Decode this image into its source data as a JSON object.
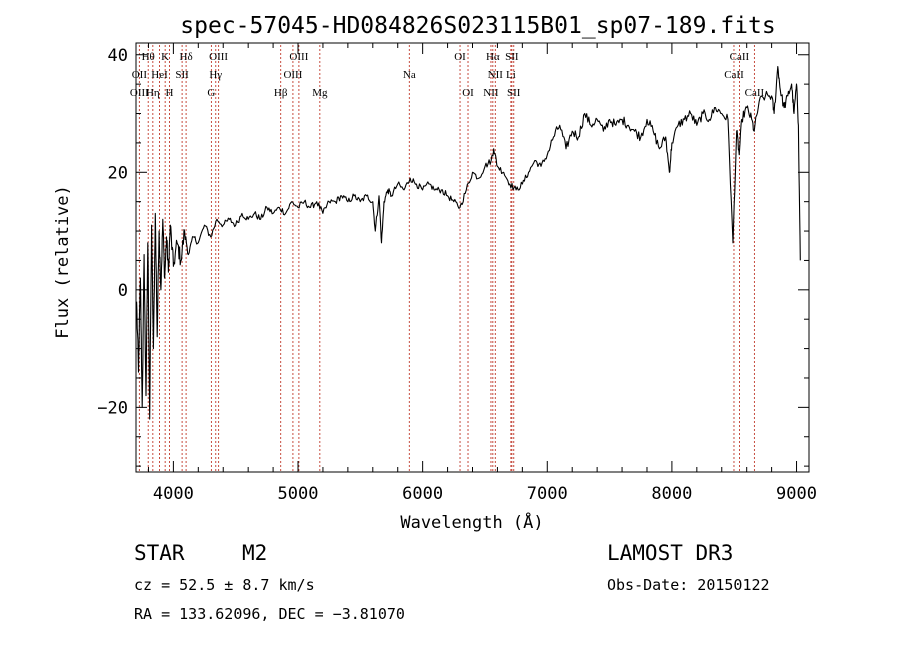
{
  "chart_data": {
    "type": "line",
    "title": "spec-57045-HD084826S023115B01_sp07-189.fits",
    "xlabel": "Wavelength (Å)",
    "ylabel": "Flux (relative)",
    "xlim": [
      3700,
      9100
    ],
    "ylim": [
      -31,
      42
    ],
    "xticks": [
      {
        "value": 4000,
        "label": "4000"
      },
      {
        "value": 5000,
        "label": "5000"
      },
      {
        "value": 6000,
        "label": "6000"
      },
      {
        "value": 7000,
        "label": "7000"
      },
      {
        "value": 8000,
        "label": "8000"
      },
      {
        "value": 9000,
        "label": "9000"
      }
    ],
    "yticks": [
      {
        "value": -20,
        "label": "−20"
      },
      {
        "value": 0,
        "label": "0"
      },
      {
        "value": 20,
        "label": "20"
      },
      {
        "value": 40,
        "label": "40"
      }
    ],
    "series": [
      {
        "name": "flux",
        "color": "#000000",
        "points": [
          [
            3705,
            -2
          ],
          [
            3720,
            -14
          ],
          [
            3735,
            2
          ],
          [
            3750,
            -20
          ],
          [
            3765,
            6
          ],
          [
            3780,
            -18
          ],
          [
            3795,
            8
          ],
          [
            3810,
            -22
          ],
          [
            3825,
            11
          ],
          [
            3840,
            -10
          ],
          [
            3855,
            13
          ],
          [
            3870,
            -8
          ],
          [
            3885,
            10
          ],
          [
            3900,
            0
          ],
          [
            3915,
            12
          ],
          [
            3930,
            2
          ],
          [
            3945,
            9
          ],
          [
            3960,
            3
          ],
          [
            3975,
            11
          ],
          [
            4000,
            4
          ],
          [
            4030,
            8
          ],
          [
            4060,
            5
          ],
          [
            4090,
            10
          ],
          [
            4120,
            6
          ],
          [
            4160,
            9
          ],
          [
            4200,
            8
          ],
          [
            4250,
            11
          ],
          [
            4300,
            9
          ],
          [
            4350,
            12
          ],
          [
            4400,
            11
          ],
          [
            4450,
            12
          ],
          [
            4500,
            11
          ],
          [
            4550,
            13
          ],
          [
            4600,
            12
          ],
          [
            4650,
            13
          ],
          [
            4700,
            12
          ],
          [
            4750,
            14
          ],
          [
            4800,
            13
          ],
          [
            4850,
            14
          ],
          [
            4900,
            13
          ],
          [
            4950,
            15
          ],
          [
            5000,
            14
          ],
          [
            5050,
            15
          ],
          [
            5100,
            14
          ],
          [
            5150,
            15
          ],
          [
            5200,
            13
          ],
          [
            5250,
            15
          ],
          [
            5300,
            15
          ],
          [
            5350,
            16
          ],
          [
            5400,
            15
          ],
          [
            5450,
            16
          ],
          [
            5500,
            15
          ],
          [
            5550,
            16
          ],
          [
            5600,
            15
          ],
          [
            5620,
            10
          ],
          [
            5650,
            16
          ],
          [
            5670,
            8
          ],
          [
            5690,
            15
          ],
          [
            5720,
            17
          ],
          [
            5750,
            16
          ],
          [
            5800,
            18
          ],
          [
            5850,
            17
          ],
          [
            5900,
            19
          ],
          [
            5950,
            18
          ],
          [
            6000,
            17
          ],
          [
            6050,
            18
          ],
          [
            6100,
            17
          ],
          [
            6150,
            17
          ],
          [
            6200,
            16
          ],
          [
            6250,
            15
          ],
          [
            6300,
            14
          ],
          [
            6350,
            17
          ],
          [
            6400,
            20
          ],
          [
            6450,
            19
          ],
          [
            6500,
            21
          ],
          [
            6550,
            22
          ],
          [
            6570,
            24
          ],
          [
            6600,
            21
          ],
          [
            6650,
            20
          ],
          [
            6700,
            18
          ],
          [
            6750,
            17
          ],
          [
            6800,
            18
          ],
          [
            6850,
            20
          ],
          [
            6900,
            22
          ],
          [
            6950,
            21
          ],
          [
            7000,
            23
          ],
          [
            7050,
            26
          ],
          [
            7100,
            28
          ],
          [
            7150,
            24
          ],
          [
            7200,
            27
          ],
          [
            7250,
            26
          ],
          [
            7300,
            30
          ],
          [
            7350,
            28
          ],
          [
            7400,
            29
          ],
          [
            7450,
            27
          ],
          [
            7500,
            29
          ],
          [
            7550,
            28
          ],
          [
            7600,
            29
          ],
          [
            7650,
            28
          ],
          [
            7700,
            27
          ],
          [
            7750,
            26
          ],
          [
            7800,
            29
          ],
          [
            7850,
            27
          ],
          [
            7900,
            24
          ],
          [
            7950,
            26
          ],
          [
            7980,
            20
          ],
          [
            8000,
            25
          ],
          [
            8050,
            28
          ],
          [
            8100,
            29
          ],
          [
            8150,
            30
          ],
          [
            8200,
            28
          ],
          [
            8250,
            30
          ],
          [
            8300,
            29
          ],
          [
            8350,
            31
          ],
          [
            8400,
            30
          ],
          [
            8450,
            29
          ],
          [
            8490,
            8
          ],
          [
            8520,
            27
          ],
          [
            8540,
            23
          ],
          [
            8560,
            29
          ],
          [
            8600,
            31
          ],
          [
            8640,
            29
          ],
          [
            8660,
            27
          ],
          [
            8700,
            32
          ],
          [
            8750,
            33
          ],
          [
            8800,
            33
          ],
          [
            8820,
            30
          ],
          [
            8850,
            38
          ],
          [
            8870,
            34
          ],
          [
            8900,
            31
          ],
          [
            8930,
            33
          ],
          [
            8960,
            35
          ],
          [
            8980,
            30
          ],
          [
            9000,
            35
          ],
          [
            9015,
            28
          ],
          [
            9030,
            5
          ]
        ]
      }
    ],
    "line_labels": [
      {
        "label": "Hθ",
        "wavelength": 3798,
        "row": 1
      },
      {
        "label": "Hη",
        "wavelength": 3835,
        "row": 3
      },
      {
        "label": "K",
        "wavelength": 3934,
        "row": 1
      },
      {
        "label": "H",
        "wavelength": 3969,
        "row": 3
      },
      {
        "label": "HeI",
        "wavelength": 3889,
        "row": 2
      },
      {
        "label": "SII",
        "wavelength": 4070,
        "row": 2
      },
      {
        "label": "Hδ",
        "wavelength": 4102,
        "row": 1
      },
      {
        "label": "OII",
        "wavelength": 3727,
        "row": 2
      },
      {
        "label": "OIII",
        "wavelength": 3727,
        "row": 3
      },
      {
        "label": "OIII",
        "wavelength": 4363,
        "row": 1
      },
      {
        "label": "Hγ",
        "wavelength": 4340,
        "row": 2
      },
      {
        "label": "G",
        "wavelength": 4305,
        "row": 3
      },
      {
        "label": "OIII",
        "wavelength": 5007,
        "row": 1
      },
      {
        "label": "OIII",
        "wavelength": 4959,
        "row": 2
      },
      {
        "label": "Hβ",
        "wavelength": 4861,
        "row": 3
      },
      {
        "label": "Mg",
        "wavelength": 5175,
        "row": 3
      },
      {
        "label": "Na",
        "wavelength": 5893,
        "row": 2
      },
      {
        "label": "OI",
        "wavelength": 6300,
        "row": 1
      },
      {
        "label": "OI",
        "wavelength": 6364,
        "row": 3
      },
      {
        "label": "Hα",
        "wavelength": 6563,
        "row": 1
      },
      {
        "label": "SII",
        "wavelength": 6716,
        "row": 1
      },
      {
        "label": "NII",
        "wavelength": 6583,
        "row": 2
      },
      {
        "label": "Li",
        "wavelength": 6708,
        "row": 2
      },
      {
        "label": "NII",
        "wavelength": 6548,
        "row": 3
      },
      {
        "label": "SII",
        "wavelength": 6731,
        "row": 3
      },
      {
        "label": "CaII",
        "wavelength": 8542,
        "row": 1
      },
      {
        "label": "CaII",
        "wavelength": 8498,
        "row": 2
      },
      {
        "label": "CaII",
        "wavelength": 8662,
        "row": 3
      }
    ],
    "line_marks": [
      3727,
      3798,
      3835,
      3889,
      3934,
      3969,
      4070,
      4102,
      4305,
      4340,
      4363,
      4861,
      4959,
      5007,
      5175,
      5893,
      6300,
      6364,
      6548,
      6563,
      6583,
      6708,
      6716,
      6731,
      8498,
      8542,
      8662
    ],
    "marker_color": "#c0392b"
  },
  "info": {
    "object_class": "STAR",
    "subclass": "M2",
    "survey": "LAMOST DR3",
    "redshift_line": "cz = 52.5 ± 8.7 km/s",
    "obs_date_line": "Obs-Date: 20150122",
    "coords_line": "RA = 133.62096, DEC =  −3.81070"
  }
}
